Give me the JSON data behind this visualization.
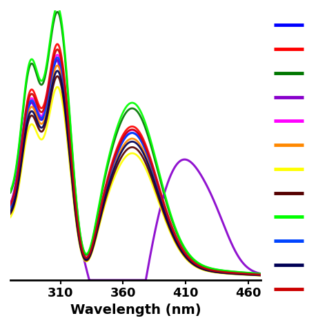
{
  "xlabel": "Wavelength (nm)",
  "xlim": [
    270,
    470
  ],
  "ylim": [
    0.0,
    1.05
  ],
  "xticks": [
    310,
    360,
    410,
    460
  ],
  "background_color": "#ffffff",
  "colors_ordered": [
    "#0000ff",
    "#ff0000",
    "#007700",
    "#8800cc",
    "#ff00ff",
    "#ff8800",
    "#ffff00",
    "#550000",
    "#00ff00",
    "#0044ff",
    "#000055",
    "#cc0000"
  ],
  "legend_colors": [
    "#0000ff",
    "#ff0000",
    "#007700",
    "#8800cc",
    "#ff00ff",
    "#ff8800",
    "#ffff00",
    "#550000",
    "#00ff00",
    "#0044ff",
    "#000055",
    "#cc0000"
  ]
}
